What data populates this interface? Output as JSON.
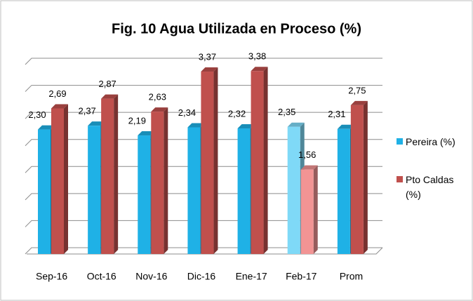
{
  "chart_data": {
    "type": "bar3d",
    "title": "Fig. 10 Agua Utilizada en Proceso (%)",
    "categories": [
      "Sep-16",
      "Oct-16",
      "Nov-16",
      "Dic-16",
      "Ene-17",
      "Feb-17",
      "Prom"
    ],
    "series": [
      {
        "name": "Pereira (%)",
        "color": "#1fb1e6",
        "colors": [
          "#1fb1e6",
          "#1fb1e6",
          "#1fb1e6",
          "#1fb1e6",
          "#1fb1e6",
          "#7fd9f7",
          "#1fb1e6"
        ],
        "values": [
          2.3,
          2.37,
          2.19,
          2.34,
          2.32,
          2.35,
          2.31
        ],
        "value_labels": [
          "2,30",
          "2,37",
          "2,19",
          "2,34",
          "2,32",
          "2,35",
          "2,31"
        ]
      },
      {
        "name": "Pto Caldas (%)",
        "color": "#c0504d",
        "colors": [
          "#c0504d",
          "#c0504d",
          "#c0504d",
          "#c0504d",
          "#c0504d",
          "#f29494",
          "#c0504d"
        ],
        "values": [
          2.69,
          2.87,
          2.63,
          3.37,
          3.38,
          1.56,
          2.75
        ],
        "value_labels": [
          "2,69",
          "2,87",
          "2,63",
          "3,37",
          "3,38",
          "1,56",
          "2,75"
        ]
      }
    ],
    "ylim": [
      0,
      3.5
    ],
    "yticks": [
      0,
      0.5,
      1,
      1.5,
      2,
      2.5,
      3,
      3.5
    ],
    "grid": true,
    "legend": "right"
  }
}
